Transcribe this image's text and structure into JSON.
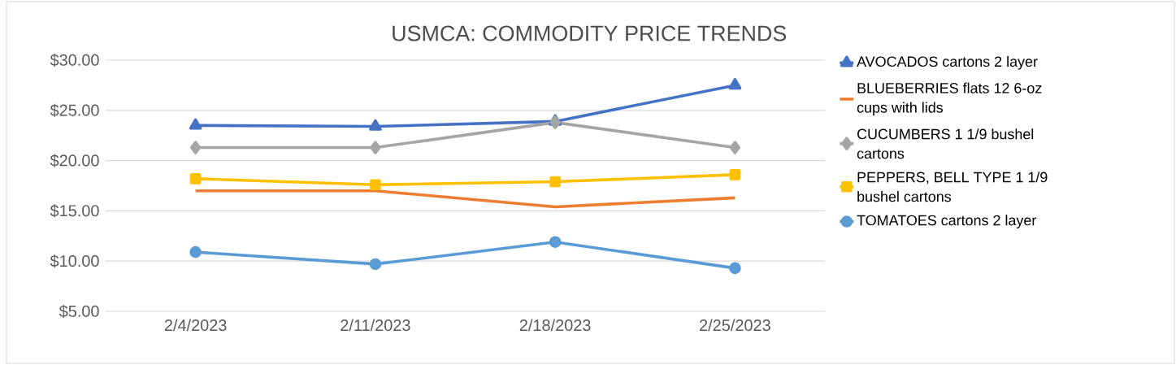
{
  "chart_data": {
    "type": "line",
    "title": "USMCA: COMMODITY PRICE TRENDS",
    "categories": [
      "2/4/2023",
      "2/11/2023",
      "2/18/2023",
      "2/25/2023"
    ],
    "series": [
      {
        "name": "AVOCADOS cartons 2 layer",
        "color": "#4472c4",
        "marker": "triangle",
        "values": [
          23.5,
          23.4,
          23.9,
          27.5
        ]
      },
      {
        "name": "BLUEBERRIES flats 12 6-oz cups with lids",
        "color": "#ed7d31",
        "marker": "none",
        "values": [
          17.0,
          17.0,
          15.4,
          16.3
        ]
      },
      {
        "name": "CUCUMBERS 1 1/9 bushel cartons",
        "color": "#a5a5a5",
        "marker": "diamond",
        "values": [
          21.3,
          21.3,
          23.8,
          21.3
        ]
      },
      {
        "name": "PEPPERS, BELL TYPE 1 1/9 bushel cartons",
        "color": "#ffc000",
        "marker": "square",
        "values": [
          18.2,
          17.6,
          17.9,
          18.6
        ]
      },
      {
        "name": "TOMATOES cartons 2 layer",
        "color": "#5b9bd5",
        "marker": "circle",
        "values": [
          10.9,
          9.7,
          11.9,
          9.3
        ]
      }
    ],
    "ylim": [
      5,
      30
    ],
    "yticks": [
      {
        "value": 5,
        "label": "$5.00"
      },
      {
        "value": 10,
        "label": "$10.00"
      },
      {
        "value": 15,
        "label": "$15.00"
      },
      {
        "value": 20,
        "label": "$20.00"
      },
      {
        "value": 25,
        "label": "$25.00"
      },
      {
        "value": 30,
        "label": "$30.00"
      }
    ],
    "grid": "y",
    "legend": "right",
    "line_style": "solid"
  }
}
